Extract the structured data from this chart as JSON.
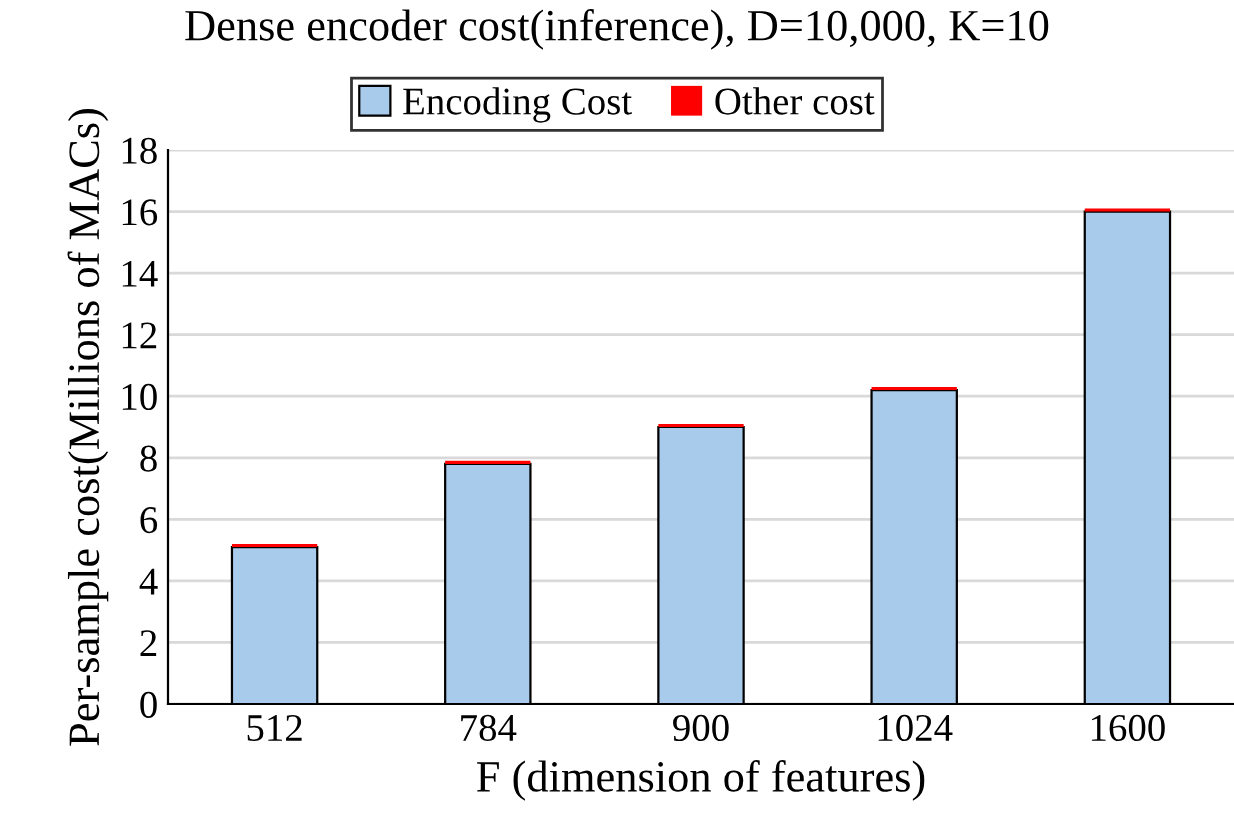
{
  "chart_data": {
    "type": "bar",
    "title": "Dense encoder cost(inference), D=10,000, K=10",
    "xlabel": "F (dimension of features)",
    "ylabel": "Per-sample cost(Millions of MACs)",
    "categories": [
      "512",
      "784",
      "900",
      "1024",
      "1600"
    ],
    "stacked": true,
    "series": [
      {
        "name": "Encoding Cost",
        "color": "#a9cbeb",
        "values": [
          5.1,
          7.8,
          9.0,
          10.2,
          16.0
        ]
      },
      {
        "name": "Other cost",
        "color": "#ff0000",
        "values": [
          0.1,
          0.1,
          0.1,
          0.1,
          0.1
        ]
      }
    ],
    "ylim": [
      0,
      18
    ],
    "yticks": [
      0,
      2,
      4,
      6,
      8,
      10,
      12,
      14,
      16,
      18
    ],
    "grid": "y",
    "legend": "top"
  }
}
